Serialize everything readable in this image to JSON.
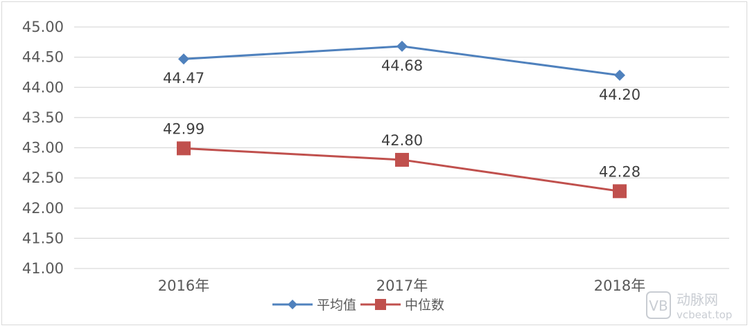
{
  "chart_data": {
    "type": "line",
    "categories": [
      "2016年",
      "2017年",
      "2018年"
    ],
    "series": [
      {
        "name": "平均值",
        "values": [
          44.47,
          44.68,
          44.2
        ],
        "color": "#4f81bd",
        "marker": "diamond",
        "labels": [
          "44.47",
          "44.68",
          "44.20"
        ],
        "label_position": "below"
      },
      {
        "name": "中位数",
        "values": [
          42.99,
          42.8,
          42.28
        ],
        "color": "#c0504d",
        "marker": "square",
        "labels": [
          "42.99",
          "42.80",
          "42.28"
        ],
        "label_position": "above"
      }
    ],
    "ylim": [
      41.0,
      45.0
    ],
    "yticks": [
      "41.00",
      "41.50",
      "42.00",
      "42.50",
      "43.00",
      "43.50",
      "44.00",
      "44.50",
      "45.00"
    ],
    "grid": true,
    "legend_position": "bottom"
  },
  "watermark": {
    "brand": "动脉网",
    "url": "vcbeat.top",
    "icon": "vb-logo-icon"
  },
  "colors": {
    "grid": "#d9d9d9",
    "axis_text": "#595959"
  }
}
